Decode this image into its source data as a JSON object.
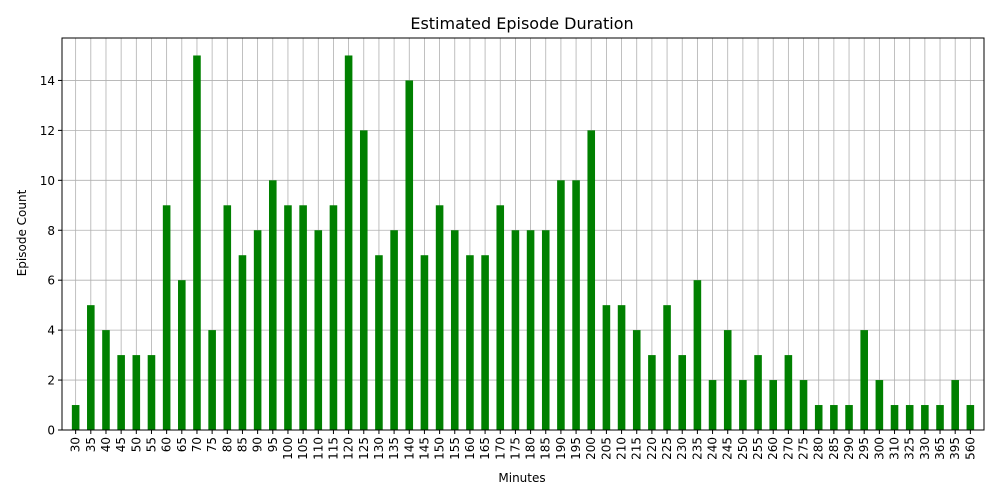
{
  "chart_data": {
    "type": "bar",
    "title": "Estimated Episode Duration",
    "xlabel": "Minutes",
    "ylabel": "Episode Count",
    "categories": [
      "30",
      "35",
      "40",
      "45",
      "50",
      "55",
      "60",
      "65",
      "70",
      "75",
      "80",
      "85",
      "90",
      "95",
      "100",
      "105",
      "110",
      "115",
      "120",
      "125",
      "130",
      "135",
      "140",
      "145",
      "150",
      "155",
      "160",
      "165",
      "170",
      "175",
      "180",
      "185",
      "190",
      "195",
      "200",
      "205",
      "210",
      "215",
      "220",
      "225",
      "230",
      "235",
      "240",
      "245",
      "250",
      "255",
      "260",
      "270",
      "275",
      "280",
      "285",
      "290",
      "295",
      "300",
      "310",
      "325",
      "330",
      "365",
      "395",
      "560"
    ],
    "values": [
      1,
      5,
      4,
      3,
      3,
      3,
      9,
      6,
      15,
      4,
      9,
      7,
      8,
      10,
      9,
      9,
      8,
      9,
      15,
      12,
      7,
      8,
      14,
      7,
      9,
      8,
      7,
      7,
      9,
      8,
      8,
      8,
      10,
      10,
      12,
      5,
      5,
      4,
      3,
      5,
      3,
      6,
      2,
      4,
      2,
      3,
      2,
      3,
      2,
      1,
      1,
      1,
      4,
      2,
      1,
      1,
      1,
      1,
      2,
      1
    ],
    "ylim": [
      0,
      15.7
    ],
    "yticks": [
      0,
      2,
      4,
      6,
      8,
      10,
      12,
      14
    ],
    "grid": true,
    "bar_color": "#008000",
    "legend": false
  }
}
